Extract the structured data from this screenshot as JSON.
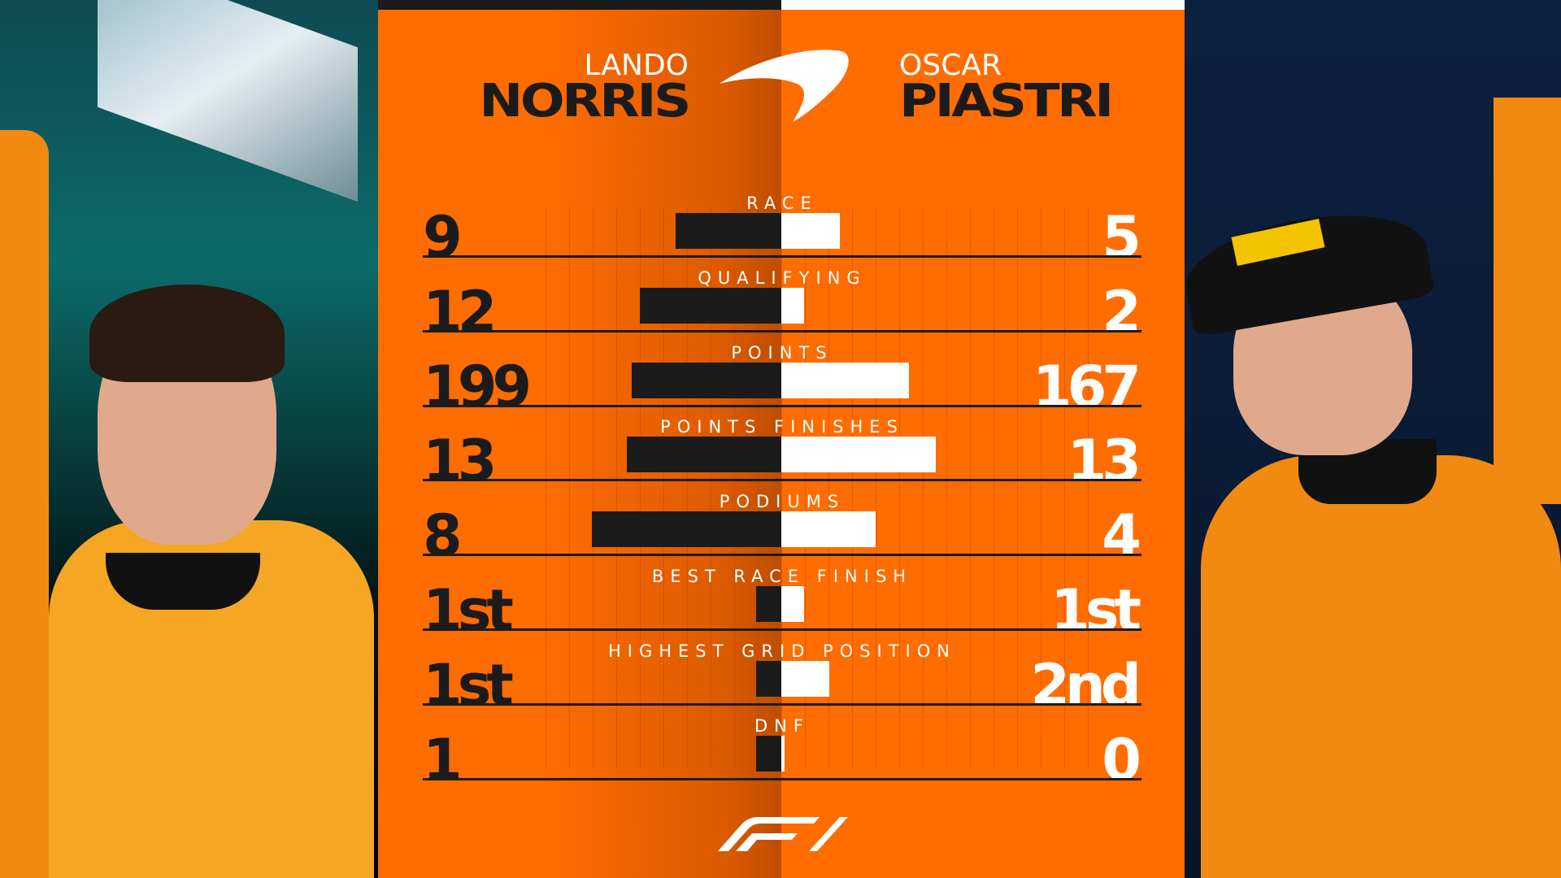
{
  "drivers": {
    "left": {
      "first": "LANDO",
      "last": "NORRIS"
    },
    "right": {
      "first": "OSCAR",
      "last": "PIASTRI"
    }
  },
  "colors": {
    "accent": "#ff6c00",
    "dark": "#1b1b1b",
    "light": "#ffffff"
  },
  "logos": {
    "team": "mclaren-speedmark",
    "series": "F1"
  },
  "stats": [
    {
      "label": "RACE",
      "left": "9",
      "right": "5"
    },
    {
      "label": "QUALIFYING",
      "left": "12",
      "right": "2"
    },
    {
      "label": "POINTS",
      "left": "199",
      "right": "167"
    },
    {
      "label": "POINTS FINISHES",
      "left": "13",
      "right": "13"
    },
    {
      "label": "PODIUMS",
      "left": "8",
      "right": "4"
    },
    {
      "label": "BEST RACE FINISH",
      "left": "1st",
      "right": "1st"
    },
    {
      "label": "HIGHEST GRID POSITION",
      "left": "1st",
      "right": "2nd"
    },
    {
      "label": "DNF",
      "left": "1",
      "right": "0"
    }
  ]
}
